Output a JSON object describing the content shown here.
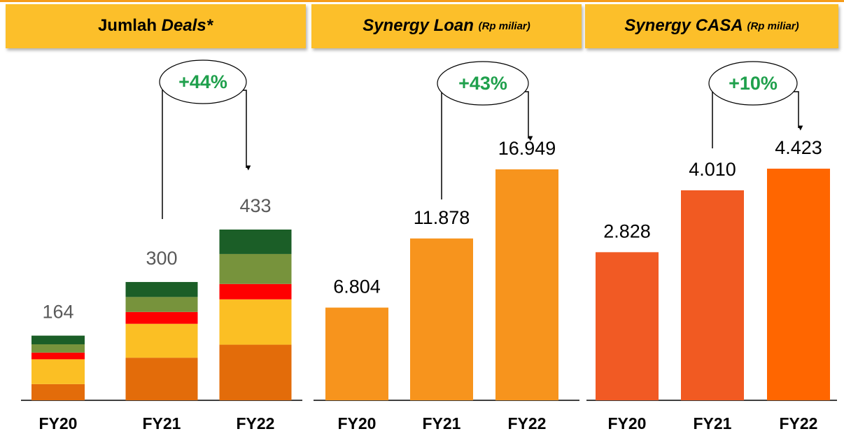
{
  "chart_data": [
    {
      "type": "stacked_bar",
      "title": "Jumlah",
      "title_emphasis": "Deals*",
      "categories": [
        "FY20",
        "FY21",
        "FY22"
      ],
      "series": [
        {
          "color": "#e36c0a",
          "values": [
            41,
            108,
            141
          ]
        },
        {
          "color": "#fbbf24",
          "values": [
            63,
            86,
            115
          ]
        },
        {
          "color": "#ff0000",
          "values": [
            17,
            30,
            39
          ]
        },
        {
          "color": "#77933c",
          "values": [
            21,
            38,
            76
          ]
        },
        {
          "color": "#1b5e27",
          "values": [
            22,
            38,
            62
          ]
        }
      ],
      "totals": [
        164,
        300,
        433
      ],
      "annotation": "+44%"
    },
    {
      "type": "bar",
      "title": "Synergy Loan",
      "subtitle": "(Rp miliar)",
      "categories": [
        "FY20",
        "FY21",
        "FY22"
      ],
      "values": [
        6804,
        11878,
        16949
      ],
      "value_labels": [
        "6.804",
        "11.878",
        "16.949"
      ],
      "colors": [
        "#f7941d",
        "#f7941d",
        "#f7941d"
      ],
      "annotation": "+43%"
    },
    {
      "type": "bar",
      "title": "Synergy CASA",
      "subtitle": "(Rp miliar)",
      "categories": [
        "FY20",
        "FY21",
        "FY22"
      ],
      "values": [
        2828,
        4010,
        4423
      ],
      "value_labels": [
        "2.828",
        "4.010",
        "4.423"
      ],
      "colors": [
        "#f15a24",
        "#f15a22",
        "#ff6600"
      ],
      "annotation": "+10%"
    }
  ]
}
